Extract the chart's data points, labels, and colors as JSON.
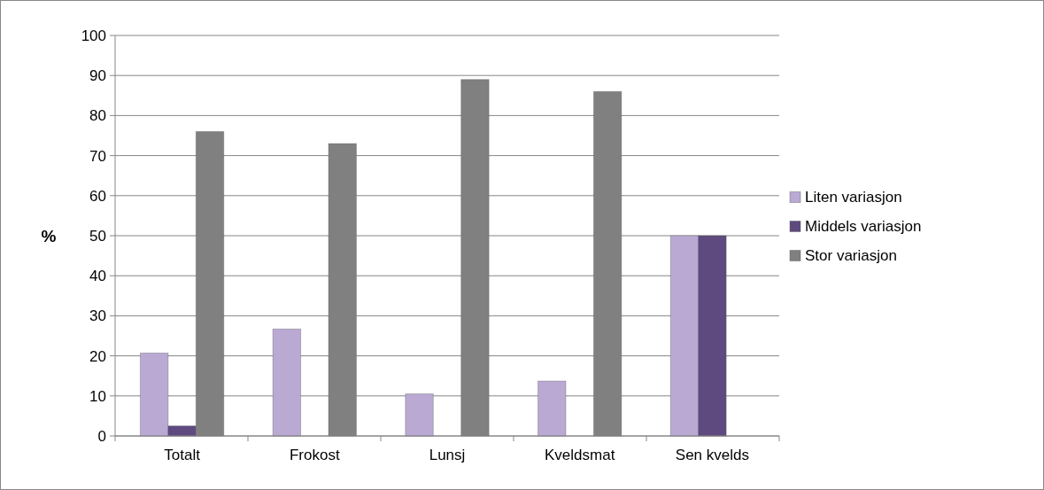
{
  "chart_data": {
    "type": "bar",
    "ylabel": "%",
    "categories": [
      "Totalt",
      "Frokost",
      "Lunsj",
      "Kveldsmat",
      "Sen kvelds"
    ],
    "series": [
      {
        "name": "Liten variasjon",
        "color": "#b9a9d3",
        "values": [
          20.7,
          26.7,
          10.5,
          13.7,
          50
        ]
      },
      {
        "name": "Middels variasjon",
        "color": "#5e4a7e",
        "values": [
          2.5,
          null,
          null,
          null,
          50
        ]
      },
      {
        "name": "Stor variasjon",
        "color": "#808080",
        "values": [
          76,
          73,
          89,
          86,
          null
        ]
      }
    ],
    "ylim": [
      0,
      100
    ],
    "yticks": [
      0,
      10,
      20,
      30,
      40,
      50,
      60,
      70,
      80,
      90,
      100
    ],
    "grid": "y",
    "legend": "right"
  }
}
